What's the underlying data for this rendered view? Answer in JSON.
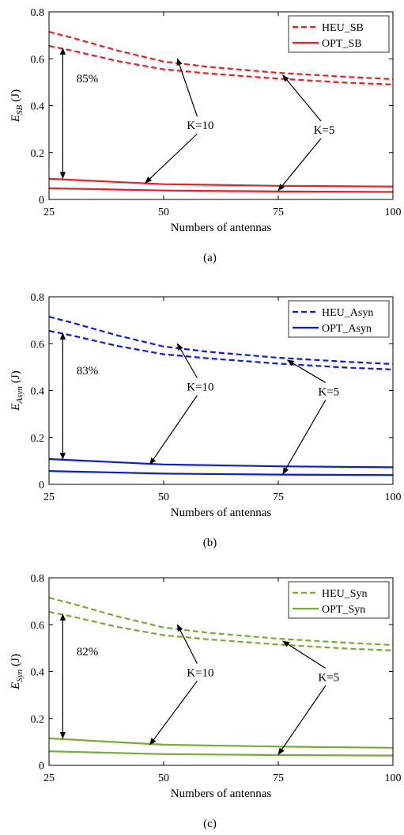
{
  "chart_data": [
    {
      "type": "line",
      "panel_caption": "(a)",
      "ylabel": {
        "main": "E",
        "sub": "SB",
        "unit": "(J)"
      },
      "xlabel": "Numbers of antennas",
      "xlim": [
        25,
        100
      ],
      "ylim": [
        0,
        0.8
      ],
      "xticks": [
        25,
        50,
        75,
        100
      ],
      "yticks": [
        0,
        0.2,
        0.4,
        0.6,
        0.8
      ],
      "ytick_labels": [
        "0",
        "0.2",
        "0.4",
        "0.6",
        "0.8"
      ],
      "grid": false,
      "legend_position": "top-right",
      "color": "#ee1c25",
      "legend": [
        {
          "label": "HEU_SB",
          "style": "dashed"
        },
        {
          "label": "OPT_SB",
          "style": "solid"
        }
      ],
      "series": [
        {
          "name": "HEU_SB",
          "K": 10,
          "style": "dashed",
          "x": [
            25,
            30,
            40,
            50,
            60,
            75,
            90,
            100
          ],
          "values": [
            0.715,
            0.69,
            0.635,
            0.588,
            0.565,
            0.54,
            0.523,
            0.513
          ]
        },
        {
          "name": "HEU_SB",
          "K": 5,
          "style": "dashed",
          "x": [
            25,
            30,
            40,
            50,
            60,
            75,
            90,
            100
          ],
          "values": [
            0.655,
            0.635,
            0.59,
            0.555,
            0.537,
            0.515,
            0.498,
            0.49
          ]
        },
        {
          "name": "OPT_SB",
          "K": 10,
          "style": "solid",
          "x": [
            25,
            50,
            75,
            100
          ],
          "values": [
            0.088,
            0.065,
            0.058,
            0.055
          ]
        },
        {
          "name": "OPT_SB",
          "K": 5,
          "style": "solid",
          "x": [
            25,
            50,
            75,
            100
          ],
          "values": [
            0.048,
            0.038,
            0.034,
            0.032
          ]
        }
      ],
      "annotations": {
        "gap_label": "85%",
        "gap_x": 28,
        "gap_range": [
          0.09,
          0.645
        ],
        "gap_text_at": [
          31,
          0.5
        ],
        "k10_label": "K=10",
        "k10_text_at": [
          58,
          0.3
        ],
        "k10_targets": [
          [
            53,
            0.6
          ],
          [
            46,
            0.07
          ]
        ],
        "k5_label": "K=5",
        "k5_text_at": [
          85,
          0.28
        ],
        "k5_targets": [
          [
            76,
            0.53
          ],
          [
            75,
            0.038
          ]
        ]
      }
    },
    {
      "type": "line",
      "panel_caption": "(b)",
      "ylabel": {
        "main": "E",
        "sub": "Asyn",
        "unit": "(J)"
      },
      "xlabel": "Numbers of antennas",
      "xlim": [
        25,
        100
      ],
      "ylim": [
        0,
        0.8
      ],
      "xticks": [
        25,
        50,
        75,
        100
      ],
      "yticks": [
        0,
        0.2,
        0.4,
        0.6,
        0.8
      ],
      "ytick_labels": [
        "0",
        "0.2",
        "0.4",
        "0.6",
        "0.8"
      ],
      "grid": false,
      "legend_position": "top-right",
      "color": "#0d1ae6",
      "legend": [
        {
          "label": "HEU_Asyn",
          "style": "dashed"
        },
        {
          "label": "OPT_Asyn",
          "style": "solid"
        }
      ],
      "series": [
        {
          "name": "HEU_Asyn",
          "K": 10,
          "style": "dashed",
          "x": [
            25,
            30,
            40,
            50,
            60,
            75,
            90,
            100
          ],
          "values": [
            0.715,
            0.69,
            0.635,
            0.588,
            0.565,
            0.54,
            0.523,
            0.513
          ]
        },
        {
          "name": "HEU_Asyn",
          "K": 5,
          "style": "dashed",
          "x": [
            25,
            30,
            40,
            50,
            60,
            75,
            90,
            100
          ],
          "values": [
            0.655,
            0.635,
            0.59,
            0.555,
            0.537,
            0.515,
            0.498,
            0.49
          ]
        },
        {
          "name": "OPT_Asyn",
          "K": 10,
          "style": "solid",
          "x": [
            25,
            50,
            75,
            100
          ],
          "values": [
            0.108,
            0.085,
            0.077,
            0.073
          ]
        },
        {
          "name": "OPT_Asyn",
          "K": 5,
          "style": "solid",
          "x": [
            25,
            50,
            75,
            100
          ],
          "values": [
            0.057,
            0.046,
            0.042,
            0.04
          ]
        }
      ],
      "annotations": {
        "gap_label": "83%",
        "gap_x": 28,
        "gap_range": [
          0.108,
          0.645
        ],
        "gap_text_at": [
          31,
          0.47
        ],
        "k10_label": "K=10",
        "k10_text_at": [
          58,
          0.4
        ],
        "k10_targets": [
          [
            53,
            0.6
          ],
          [
            47,
            0.085
          ]
        ],
        "k5_label": "K=5",
        "k5_text_at": [
          86,
          0.38
        ],
        "k5_targets": [
          [
            77,
            0.53
          ],
          [
            76,
            0.044
          ]
        ]
      }
    },
    {
      "type": "line",
      "panel_caption": "(c)",
      "ylabel": {
        "main": "E",
        "sub": "Syn",
        "unit": "(J)"
      },
      "xlabel": "Numbers of antennas",
      "xlim": [
        25,
        100
      ],
      "ylim": [
        0,
        0.8
      ],
      "xticks": [
        25,
        50,
        75,
        100
      ],
      "yticks": [
        0,
        0.2,
        0.4,
        0.6,
        0.8
      ],
      "ytick_labels": [
        "0",
        "0.2",
        "0.4",
        "0.6",
        "0.8"
      ],
      "grid": false,
      "legend_position": "top-right",
      "color": "#77ac30",
      "legend": [
        {
          "label": "HEU_Syn",
          "style": "dashed"
        },
        {
          "label": "OPT_Syn",
          "style": "solid"
        }
      ],
      "series": [
        {
          "name": "HEU_Syn",
          "K": 10,
          "style": "dashed",
          "x": [
            25,
            30,
            40,
            50,
            60,
            75,
            90,
            100
          ],
          "values": [
            0.715,
            0.69,
            0.635,
            0.588,
            0.565,
            0.54,
            0.523,
            0.513
          ]
        },
        {
          "name": "HEU_Syn",
          "K": 5,
          "style": "dashed",
          "x": [
            25,
            30,
            40,
            50,
            60,
            75,
            90,
            100
          ],
          "values": [
            0.655,
            0.635,
            0.59,
            0.555,
            0.537,
            0.515,
            0.498,
            0.49
          ]
        },
        {
          "name": "OPT_Syn",
          "K": 10,
          "style": "solid",
          "x": [
            25,
            50,
            75,
            100
          ],
          "values": [
            0.115,
            0.088,
            0.08,
            0.075
          ]
        },
        {
          "name": "OPT_Syn",
          "K": 5,
          "style": "solid",
          "x": [
            25,
            50,
            75,
            100
          ],
          "values": [
            0.06,
            0.048,
            0.044,
            0.042
          ]
        }
      ],
      "annotations": {
        "gap_label": "82%",
        "gap_x": 28,
        "gap_range": [
          0.115,
          0.645
        ],
        "gap_text_at": [
          31,
          0.47
        ],
        "k10_label": "K=10",
        "k10_text_at": [
          58,
          0.38
        ],
        "k10_targets": [
          [
            53,
            0.6
          ],
          [
            47,
            0.088
          ]
        ],
        "k5_label": "K=5",
        "k5_text_at": [
          86,
          0.36
        ],
        "k5_targets": [
          [
            76,
            0.53
          ],
          [
            75,
            0.046
          ]
        ]
      }
    }
  ]
}
